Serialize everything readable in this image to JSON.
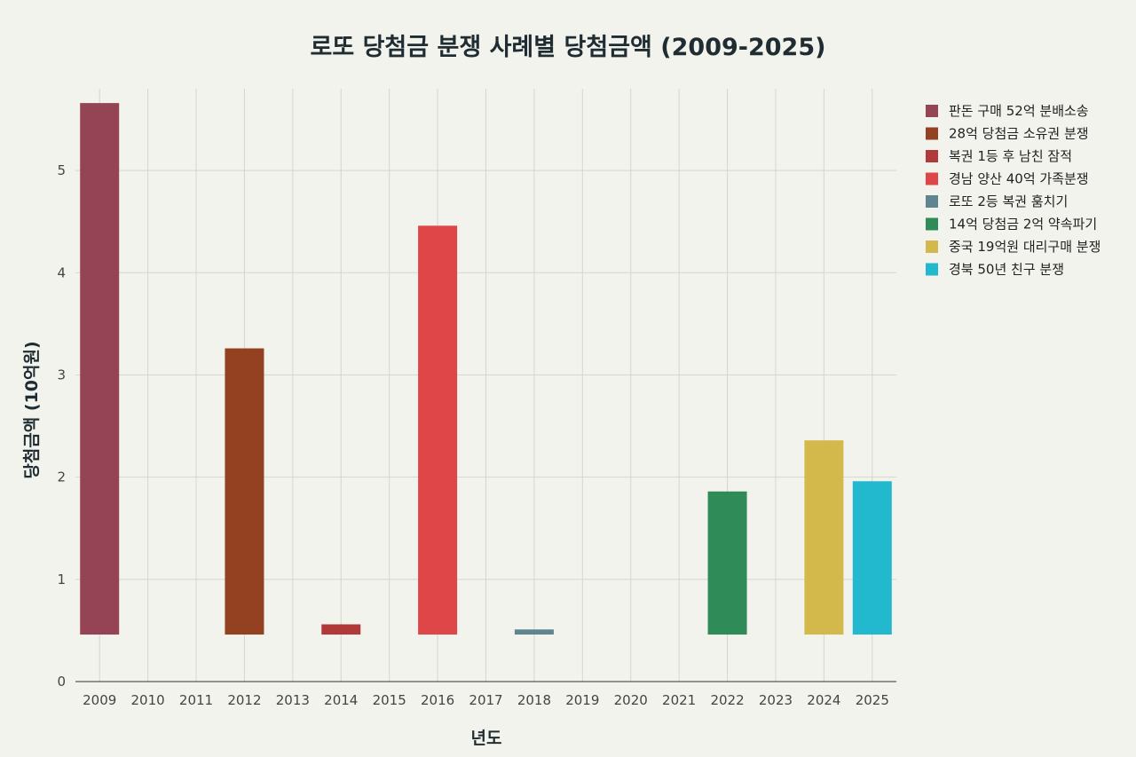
{
  "chart_data": {
    "type": "bar",
    "title": "로또 당첨금 분쟁 사례별 당첨금액 (2009-2025)",
    "xlabel": "년도",
    "ylabel": "당첨금액 (10억원)",
    "categories": [
      "2009",
      "2010",
      "2011",
      "2012",
      "2013",
      "2014",
      "2015",
      "2016",
      "2017",
      "2018",
      "2019",
      "2020",
      "2021",
      "2022",
      "2023",
      "2024",
      "2025"
    ],
    "ylim": [
      0,
      5.8
    ],
    "yticks": [
      0,
      1,
      2,
      3,
      4,
      5
    ],
    "base": 0.46,
    "grid": true,
    "legend_position": "right",
    "series": [
      {
        "name": "판돈 구매 52억 분배소송",
        "color": "#944454",
        "x": "2009",
        "value": 5.66
      },
      {
        "name": "28억 당첨금 소유권 분쟁",
        "color": "#944121",
        "x": "2012",
        "value": 3.26
      },
      {
        "name": "복권 1등 후 남친 잠적",
        "color": "#b03a3a",
        "x": "2014",
        "value": 0.56
      },
      {
        "name": "경남 양산 40억 가족분쟁",
        "color": "#de4647",
        "x": "2016",
        "value": 4.46
      },
      {
        "name": "로또 2등 복권 훔치기",
        "color": "#5e8590",
        "x": "2018",
        "value": 0.51
      },
      {
        "name": "14억 당첨금 2억 약속파기",
        "color": "#2f8b57",
        "x": "2022",
        "value": 1.86
      },
      {
        "name": "중국 19억원 대리구매 분쟁",
        "color": "#d3b94c",
        "x": "2024",
        "value": 2.36
      },
      {
        "name": "경북 50년 친구 분쟁",
        "color": "#22b9cf",
        "x": "2025",
        "value": 1.96
      }
    ]
  }
}
